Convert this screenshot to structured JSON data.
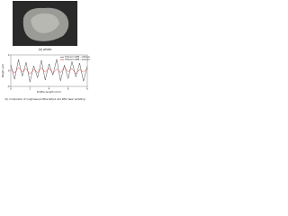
{
  "figure_a": {
    "caption": "(a) photo"
  },
  "chart_data": {
    "type": "line",
    "caption": "(b) comparison of roughness profiles before and after laser polishing",
    "x_label": "Profile length (mm)",
    "y_label": "Height (µm)",
    "x": [
      0,
      0.4,
      0.8,
      1.2,
      1.6,
      2,
      2.4,
      2.8,
      3.2,
      3.6,
      4,
      4.4,
      4.8,
      5.2,
      5.6,
      6,
      6.4,
      6.8,
      7.2,
      7.6,
      8
    ],
    "series": [
      {
        "name": "Titanium GB6 - reference",
        "color": "#222222",
        "values": [
          1.5,
          -2.2,
          2.8,
          -1.4,
          2.1,
          -2.9,
          1.2,
          -1.8,
          2.6,
          -2.4,
          1.7,
          -1.1,
          2.9,
          -2.6,
          1.4,
          -2.0,
          2.3,
          -1.6,
          1.9,
          -2.7,
          1.1
        ]
      },
      {
        "name": "Titanium GB6 - area polished",
        "color": "#d62020",
        "values": [
          0.4,
          -0.6,
          0.8,
          -0.3,
          0.5,
          -0.9,
          0.3,
          -0.5,
          0.7,
          -0.4,
          0.6,
          -0.7,
          0.4,
          -0.5,
          0.9,
          -0.3,
          0.5,
          -0.8,
          0.3,
          -0.4,
          0.6
        ]
      }
    ],
    "xlim": [
      0,
      8
    ],
    "xticks": [
      0,
      2,
      4,
      6,
      8
    ],
    "ylim": [
      -4,
      4
    ],
    "yticks": [
      -4,
      0,
      4
    ],
    "legend": "upper-right"
  }
}
